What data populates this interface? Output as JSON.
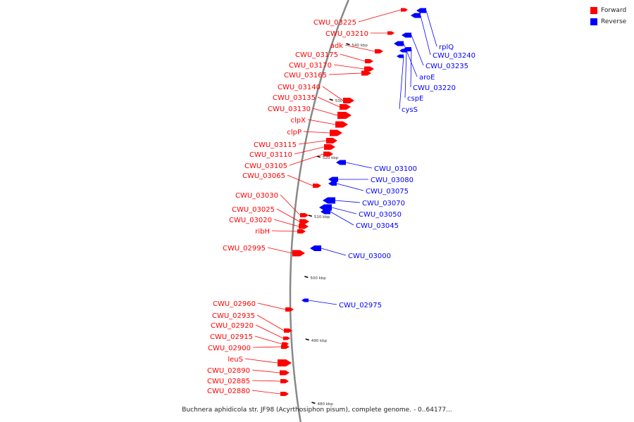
{
  "legend": [
    {
      "label": "Forward",
      "color": "#ff0000"
    },
    {
      "label": "Reverse",
      "color": "#0000ff"
    }
  ],
  "caption": "Buchnera aphidicola str. JF98 (Acyrthosiphon pisum), complete genome. - 0..64177...",
  "colors": {
    "forward": "#ff0000",
    "reverse": "#0000ff",
    "backbone": "#888888",
    "tick": "#000000"
  },
  "scale_labels": [
    "540 kbp",
    "530 kbp",
    "520 kbp",
    "510 kbp",
    "500 kbp",
    "490 kbp",
    "480 kbp"
  ],
  "forward_genes": [
    "CWU_03225",
    "CWU_03210",
    "adk",
    "CWU_03175",
    "CWU_03170",
    "CWU_03165",
    "CWU_03140",
    "CWU_03135",
    "CWU_03130",
    "clpX",
    "clpP",
    "CWU_03115",
    "CWU_03110",
    "CWU_03105",
    "CWU_03065",
    "CWU_03030",
    "CWU_03025",
    "CWU_03020",
    "ribH",
    "CWU_02995",
    "CWU_02960",
    "CWU_02935",
    "CWU_02920",
    "CWU_02915",
    "CWU_02900",
    "leuS",
    "CWU_02890",
    "CWU_02885",
    "CWU_02880"
  ],
  "reverse_genes": [
    "rplQ",
    "CWU_03240",
    "CWU_03235",
    "aroE",
    "CWU_03220",
    "cspE",
    "cysS",
    "CWU_03100",
    "CWU_03080",
    "CWU_03075",
    "CWU_03070",
    "CWU_03050",
    "CWU_03045",
    "CWU_03000",
    "CWU_02975"
  ]
}
